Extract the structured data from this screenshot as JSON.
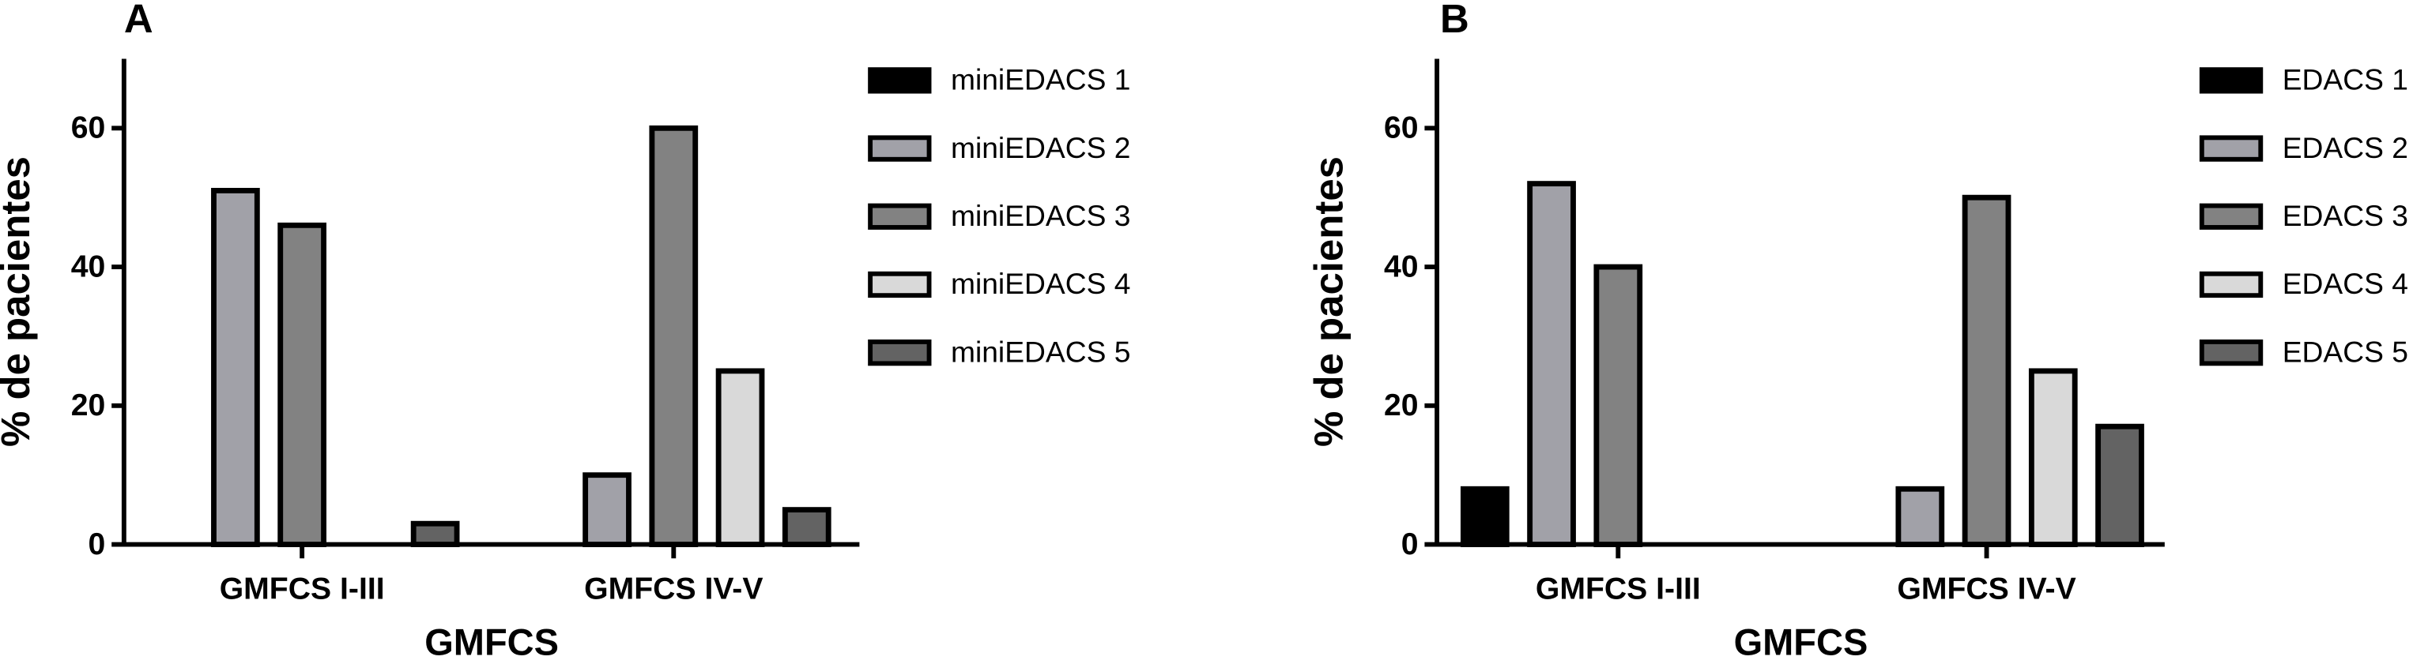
{
  "chart_data": [
    {
      "type": "bar",
      "label": "A",
      "ylabel": "% de pacientes",
      "xlabel": "GMFCS",
      "categories": [
        "GMFCS I-III",
        "GMFCS IV-V"
      ],
      "series": [
        {
          "name": "miniEDACS 1",
          "color": "#000000",
          "values": [
            0,
            0
          ]
        },
        {
          "name": "miniEDACS 2",
          "color": "#a1a1a8",
          "values": [
            51,
            10
          ]
        },
        {
          "name": "miniEDACS 3",
          "color": "#828282",
          "values": [
            46,
            60
          ]
        },
        {
          "name": "miniEDACS 4",
          "color": "#d9d9d9",
          "values": [
            0,
            25
          ]
        },
        {
          "name": "miniEDACS 5",
          "color": "#636363",
          "values": [
            3,
            5
          ]
        }
      ],
      "ylim": [
        0,
        70
      ],
      "yticks": [
        0,
        20,
        40,
        60
      ]
    },
    {
      "type": "bar",
      "label": "B",
      "ylabel": "% de pacientes",
      "xlabel": "GMFCS",
      "categories": [
        "GMFCS I-III",
        "GMFCS IV-V"
      ],
      "series": [
        {
          "name": "EDACS 1",
          "color": "#000000",
          "values": [
            8,
            0
          ]
        },
        {
          "name": "EDACS 2",
          "color": "#a1a1a8",
          "values": [
            52,
            8
          ]
        },
        {
          "name": "EDACS 3",
          "color": "#828282",
          "values": [
            40,
            50
          ]
        },
        {
          "name": "EDACS 4",
          "color": "#d9d9d9",
          "values": [
            0,
            25
          ]
        },
        {
          "name": "EDACS 5",
          "color": "#636363",
          "values": [
            0,
            17
          ]
        }
      ],
      "ylim": [
        0,
        70
      ],
      "yticks": [
        0,
        20,
        40,
        60
      ]
    }
  ]
}
